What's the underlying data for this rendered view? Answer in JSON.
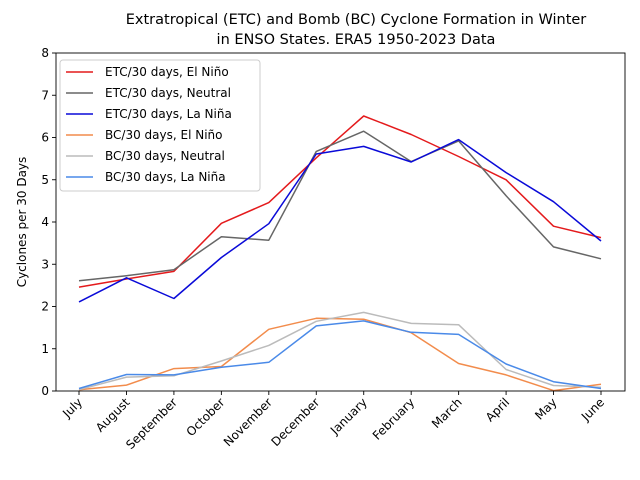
{
  "chart_data": {
    "type": "line",
    "title_line1": "Extratropical (ETC) and Bomb (BC) Cyclone Formation in Winter",
    "title_line2": "in ENSO States. ERA5 1950-2023 Data",
    "xlabel": "",
    "ylabel": "Cyclones per 30 Days",
    "ylim": [
      0,
      8
    ],
    "yticks": [
      "0",
      "1",
      "2",
      "3",
      "4",
      "5",
      "6",
      "7",
      "8"
    ],
    "categories": [
      "July",
      "August",
      "September",
      "October",
      "November",
      "December",
      "January",
      "February",
      "March",
      "April",
      "May",
      "June"
    ],
    "legend_position": "upper-left",
    "grid": false,
    "series": [
      {
        "name": "ETC/30 days, El Niño",
        "color": "#e41a1c",
        "values": [
          2.46,
          2.65,
          2.83,
          3.97,
          4.46,
          5.52,
          6.51,
          6.07,
          5.55,
          5.0,
          3.9,
          3.63
        ]
      },
      {
        "name": "ETC/30 days, Neutral",
        "color": "#666666",
        "values": [
          2.61,
          2.73,
          2.87,
          3.65,
          3.57,
          5.67,
          6.15,
          5.43,
          5.92,
          4.62,
          3.41,
          3.13
        ]
      },
      {
        "name": "ETC/30 days, La Niña",
        "color": "#0a0ad8",
        "values": [
          2.11,
          2.68,
          2.19,
          3.16,
          3.96,
          5.61,
          5.79,
          5.42,
          5.95,
          5.17,
          4.48,
          3.55
        ]
      },
      {
        "name": "BC/30 days, El Niño",
        "color": "#f28c4c",
        "values": [
          0.03,
          0.14,
          0.53,
          0.58,
          1.46,
          1.72,
          1.7,
          1.38,
          0.65,
          0.38,
          0.01,
          0.16
        ]
      },
      {
        "name": "BC/30 days, Neutral",
        "color": "#bbbbbb",
        "values": [
          0.03,
          0.33,
          0.36,
          0.71,
          1.08,
          1.65,
          1.86,
          1.6,
          1.57,
          0.51,
          0.13,
          0.09
        ]
      },
      {
        "name": "BC/30 days, La Niña",
        "color": "#4a8ae8",
        "values": [
          0.06,
          0.39,
          0.38,
          0.56,
          0.68,
          1.54,
          1.66,
          1.39,
          1.34,
          0.64,
          0.22,
          0.06
        ]
      }
    ]
  }
}
